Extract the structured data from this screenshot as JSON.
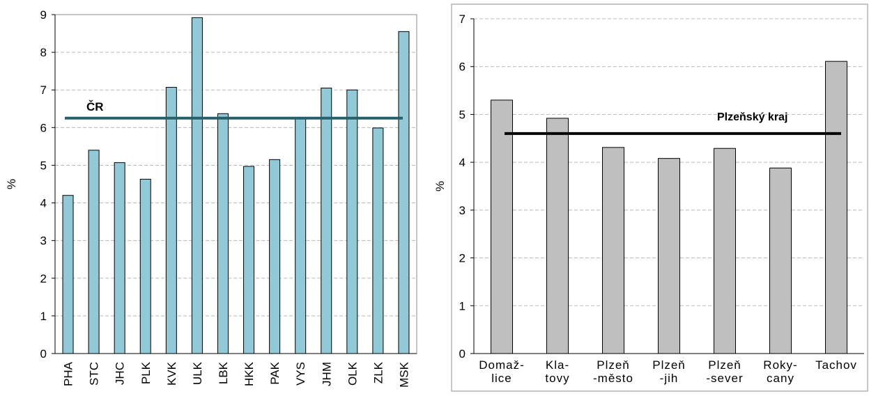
{
  "chart_data": [
    {
      "type": "bar",
      "ylabel": "%",
      "ylim": [
        0,
        9
      ],
      "yticks": [
        0,
        1,
        2,
        3,
        4,
        5,
        6,
        7,
        8,
        9
      ],
      "grid": true,
      "categories": [
        "PHA",
        "STC",
        "JHC",
        "PLK",
        "KVK",
        "ULK",
        "LBK",
        "HKK",
        "PAK",
        "VYS",
        "JHM",
        "OLK",
        "ZLK",
        "MSK"
      ],
      "values": [
        4.2,
        5.4,
        5.07,
        4.63,
        7.07,
        8.92,
        6.37,
        4.97,
        5.15,
        6.27,
        7.05,
        7.0,
        5.99,
        8.55
      ],
      "reference_line": {
        "label": "ČR",
        "value": 6.25
      },
      "colors": {
        "bar": "#92c9d6",
        "line": "#27606b"
      }
    },
    {
      "type": "bar",
      "ylabel": "%",
      "ylim": [
        0,
        7
      ],
      "yticks": [
        0,
        1,
        2,
        3,
        4,
        5,
        6,
        7
      ],
      "grid": true,
      "categories": [
        [
          "Domaž-",
          "lice"
        ],
        [
          "Kla-",
          "tovy"
        ],
        [
          "Plzeň",
          "-město"
        ],
        [
          "Plzeň",
          "-jih"
        ],
        [
          "Plzeň",
          "-sever"
        ],
        [
          "Roky-",
          "cany"
        ],
        [
          "Tachov"
        ]
      ],
      "values": [
        5.3,
        4.92,
        4.31,
        4.08,
        4.29,
        3.88,
        6.11
      ],
      "reference_line": {
        "label": "Plzeňský kraj",
        "value": 4.6
      },
      "colors": {
        "bar": "#bfbfbf",
        "line": "#000000"
      }
    }
  ]
}
